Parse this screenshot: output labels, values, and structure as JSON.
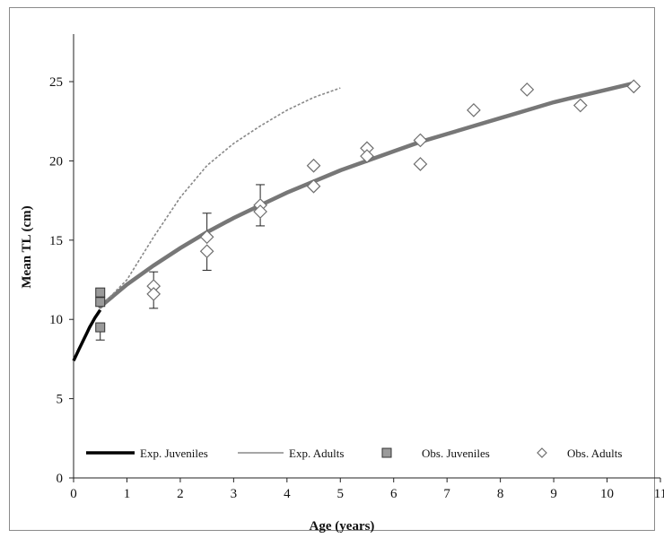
{
  "chart_data": {
    "type": "line",
    "title": "",
    "xlabel": "Age (years)",
    "ylabel": "Mean TL (cm)",
    "xlim": [
      0,
      11
    ],
    "ylim": [
      0,
      28
    ],
    "x_ticks": [
      0,
      1,
      2,
      3,
      4,
      5,
      6,
      7,
      8,
      9,
      10,
      11
    ],
    "y_ticks": [
      0,
      5,
      10,
      15,
      20,
      25
    ],
    "grid": false,
    "legend_position": "bottom",
    "colors": {
      "exp_juveniles": "#000000",
      "exp_adults": "#888888",
      "vb_fit": "#777777",
      "obs_juveniles_fill": "#9a9a9a",
      "obs_adults_stroke": "#6f6f6f"
    },
    "series": [
      {
        "name": "Exp. Juveniles",
        "kind": "line",
        "x": [
          0,
          0.05,
          0.1,
          0.15,
          0.2,
          0.25,
          0.3,
          0.35,
          0.4,
          0.45,
          0.5
        ],
        "y": [
          7.4,
          7.75,
          8.1,
          8.45,
          8.8,
          9.15,
          9.5,
          9.8,
          10.1,
          10.35,
          10.6
        ]
      },
      {
        "name": "Exp. Adults",
        "kind": "line",
        "x": [
          0.5,
          1.0,
          1.5,
          2.0,
          2.5,
          3.0,
          3.5,
          4.0,
          4.5,
          5.0
        ],
        "y": [
          10.8,
          12.5,
          15.2,
          17.7,
          19.7,
          21.1,
          22.2,
          23.2,
          24.0,
          24.6
        ]
      },
      {
        "name": "",
        "kind": "fit",
        "x": [
          0.5,
          1.0,
          1.5,
          2.0,
          2.5,
          3.0,
          3.5,
          4.0,
          4.5,
          5.0,
          5.5,
          6.0,
          6.5,
          7.0,
          7.5,
          8.0,
          8.5,
          9.0,
          9.5,
          10.0,
          10.5
        ],
        "y": [
          10.8,
          12.2,
          13.4,
          14.5,
          15.5,
          16.4,
          17.2,
          18.0,
          18.7,
          19.4,
          20.0,
          20.6,
          21.2,
          21.7,
          22.2,
          22.7,
          23.2,
          23.7,
          24.1,
          24.5,
          24.9
        ]
      },
      {
        "name": "Obs. Juveniles",
        "kind": "square",
        "x": [
          0.5,
          0.5,
          0.5
        ],
        "y": [
          11.7,
          11.1,
          9.5
        ],
        "err_low": [
          0,
          0,
          0.8
        ],
        "err_high": [
          0,
          0,
          0
        ]
      },
      {
        "name": "Obs. Adults",
        "kind": "diamond",
        "x": [
          1.5,
          1.5,
          2.5,
          2.5,
          3.5,
          3.5,
          4.5,
          4.5,
          5.5,
          5.5,
          6.5,
          6.5,
          7.5,
          8.5,
          9.5,
          10.5
        ],
        "y": [
          12.1,
          11.6,
          15.2,
          14.3,
          17.2,
          16.8,
          19.7,
          18.4,
          20.8,
          20.3,
          21.3,
          19.8,
          23.2,
          24.5,
          23.5,
          24.7
        ],
        "err_low": [
          0,
          0.9,
          0,
          1.2,
          0,
          0.9,
          0,
          0,
          0,
          0,
          0,
          0,
          0,
          0,
          0,
          0
        ],
        "err_high": [
          0.9,
          0,
          1.5,
          0,
          1.3,
          0,
          0,
          0,
          0,
          0,
          0,
          0,
          0,
          0,
          0,
          0
        ]
      }
    ]
  }
}
